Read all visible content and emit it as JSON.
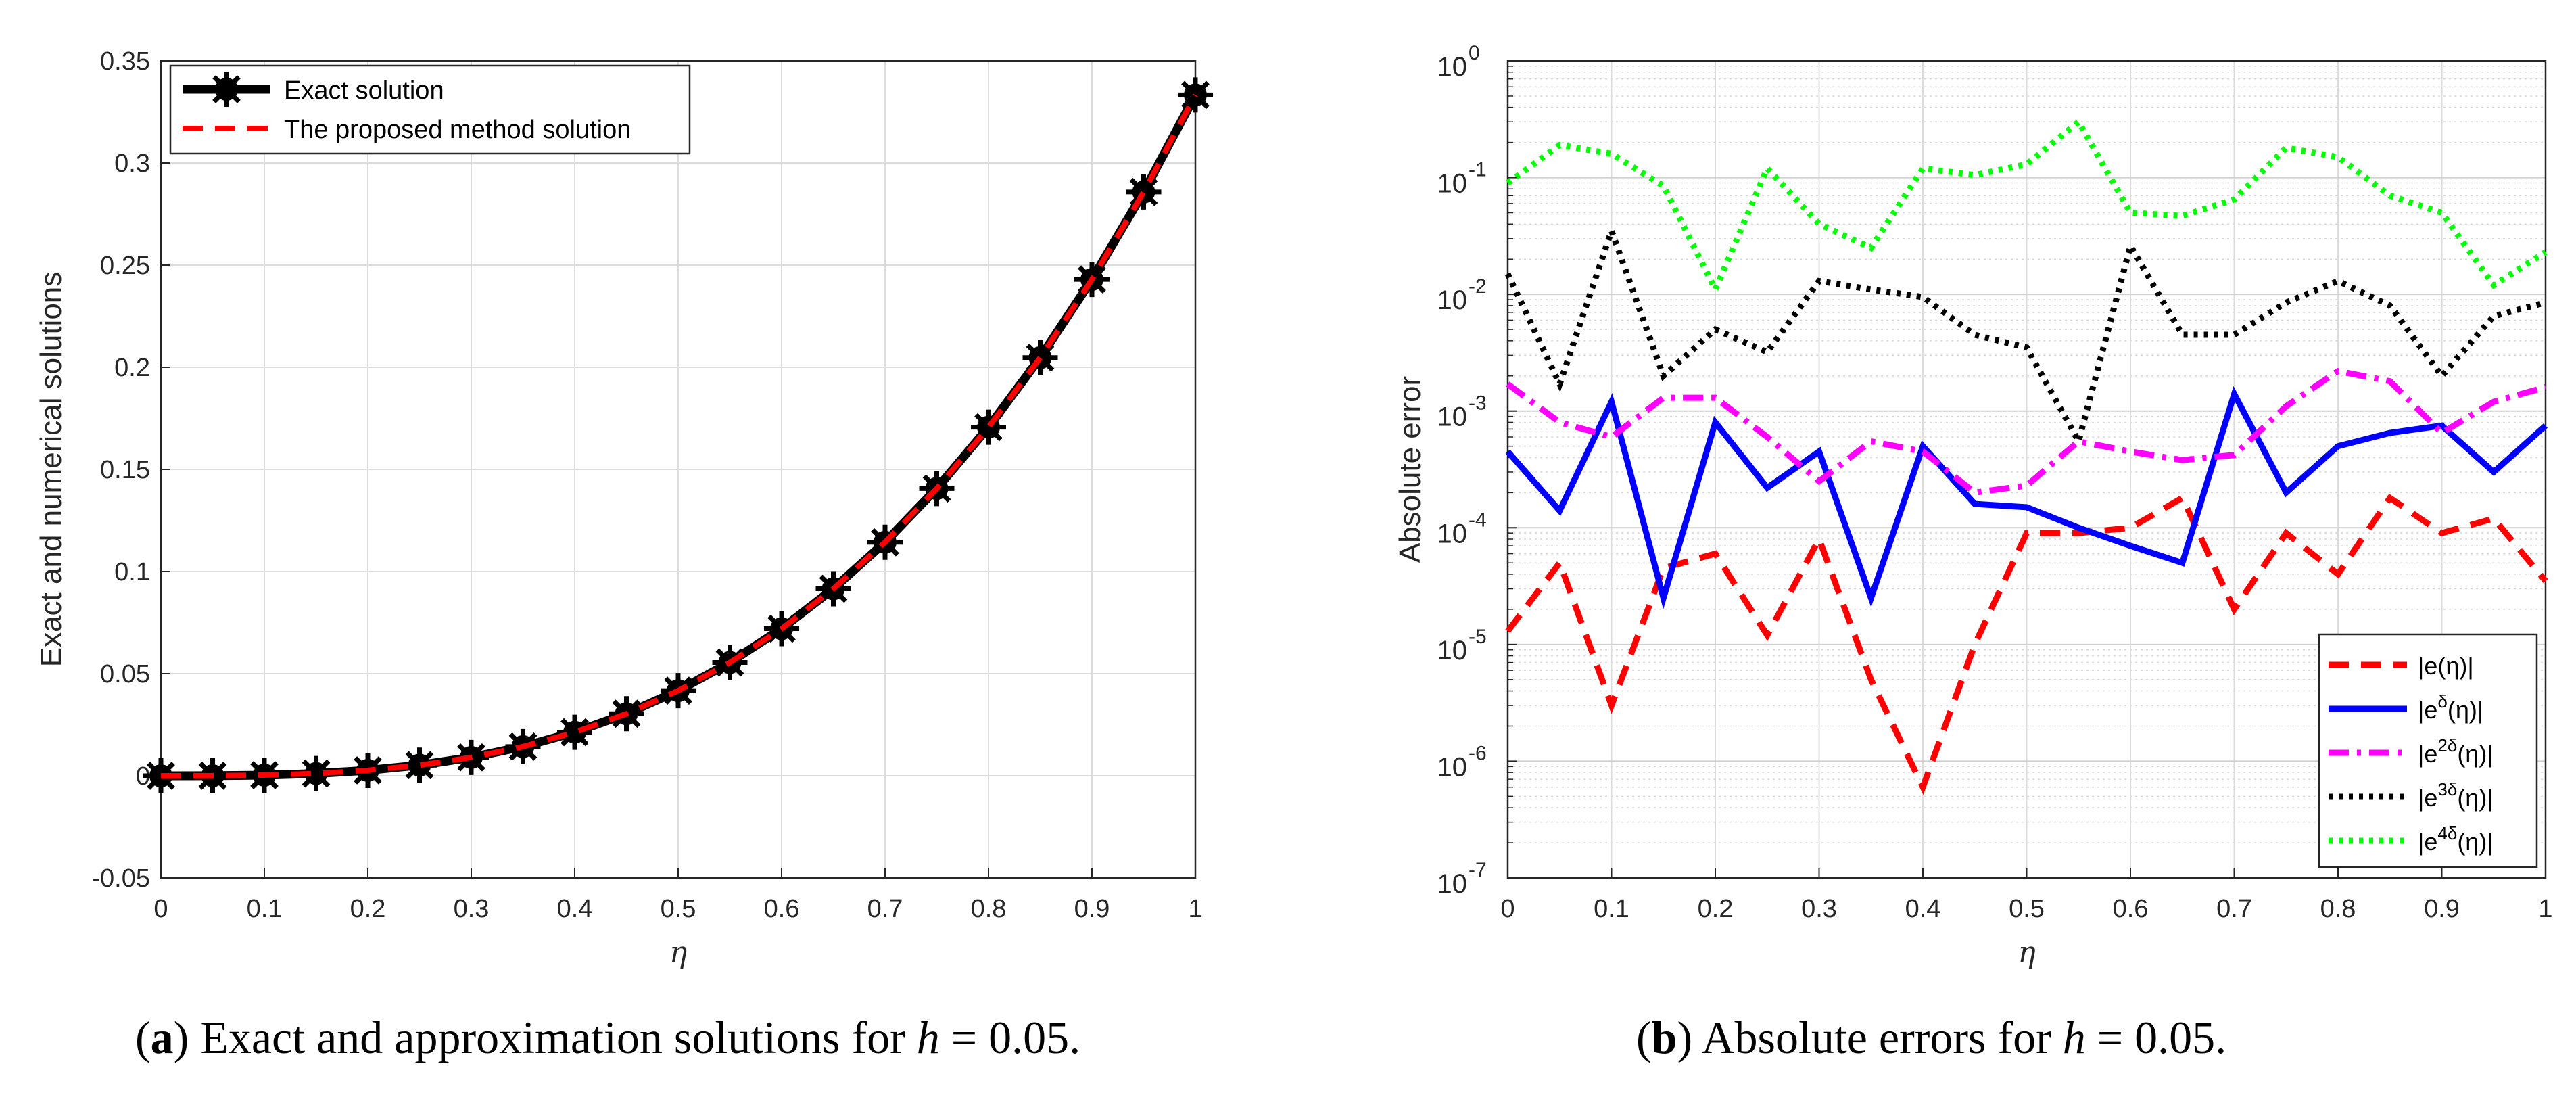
{
  "chart_data": [
    {
      "type": "line",
      "panel": "a",
      "title": "",
      "xlabel": "η",
      "ylabel": "Exact and numerical solutions",
      "xlim": [
        0,
        1
      ],
      "ylim": [
        -0.05,
        0.35
      ],
      "grid": true,
      "legend_position": "top-left",
      "xticks": [
        "0",
        "0.1",
        "0.2",
        "0.3",
        "0.4",
        "0.5",
        "0.6",
        "0.7",
        "0.8",
        "0.9",
        "1"
      ],
      "yticks": [
        "-0.05",
        "0",
        "0.05",
        "0.1",
        "0.15",
        "0.2",
        "0.25",
        "0.3",
        "0.35"
      ],
      "x": [
        0,
        0.05,
        0.1,
        0.15,
        0.2,
        0.25,
        0.3,
        0.35,
        0.4,
        0.45,
        0.5,
        0.55,
        0.6,
        0.65,
        0.7,
        0.75,
        0.8,
        0.85,
        0.9,
        0.95,
        1
      ],
      "series": [
        {
          "name": "Exact solution",
          "color": "#000000",
          "style": "solid-asterisk",
          "values": [
            0,
            4.17e-05,
            0.000333,
            0.001125,
            0.002667,
            0.005208,
            0.009,
            0.014292,
            0.021333,
            0.030375,
            0.041667,
            0.055458,
            0.072,
            0.091542,
            0.114333,
            0.140625,
            0.170667,
            0.204708,
            0.243,
            0.285792,
            0.333333
          ]
        },
        {
          "name": "The proposed method solution",
          "color": "#ff0000",
          "style": "dashed",
          "values": [
            0,
            4.17e-05,
            0.000333,
            0.001125,
            0.002667,
            0.005208,
            0.009,
            0.014292,
            0.021333,
            0.030375,
            0.041667,
            0.055458,
            0.072,
            0.091542,
            0.114333,
            0.140625,
            0.170667,
            0.204708,
            0.243,
            0.285792,
            0.333333
          ]
        }
      ]
    },
    {
      "type": "line",
      "panel": "b",
      "title": "",
      "xlabel": "η",
      "ylabel": "Absolute error",
      "xscale": "linear",
      "yscale": "log",
      "xlim": [
        0,
        1
      ],
      "ylim": [
        1e-07,
        1
      ],
      "grid": true,
      "minor_grid": true,
      "legend_position": "bottom-right",
      "xticks": [
        "0",
        "0.1",
        "0.2",
        "0.3",
        "0.4",
        "0.5",
        "0.6",
        "0.7",
        "0.8",
        "0.9",
        "1"
      ],
      "ytick_exponents": [
        -7,
        -6,
        -5,
        -4,
        -3,
        -2,
        -1,
        0
      ],
      "ytick_base": "10",
      "x": [
        0,
        0.05,
        0.1,
        0.15,
        0.2,
        0.25,
        0.3,
        0.35,
        0.4,
        0.45,
        0.5,
        0.55,
        0.6,
        0.65,
        0.7,
        0.75,
        0.8,
        0.85,
        0.9,
        0.95,
        1
      ],
      "series": [
        {
          "name": "|e(η)|",
          "label_base": "|e",
          "label_sup": "",
          "label_tail": "(η)|",
          "color": "#ff0000",
          "style": "dashed",
          "values": [
            1.3e-05,
            5e-05,
            3e-06,
            4.5e-05,
            6e-05,
            1.2e-05,
            8e-05,
            5e-06,
            6e-07,
            1e-05,
            9e-05,
            9e-05,
            0.0001,
            0.00018,
            2e-05,
            9e-05,
            4e-05,
            0.00018,
            9e-05,
            0.00012,
            3.5e-05
          ]
        },
        {
          "name": "|e^δ(η)|",
          "label_base": "|e",
          "label_sup": "δ",
          "label_tail": "(η)|",
          "color": "#0000ff",
          "style": "solid",
          "values": [
            0.00045,
            0.00014,
            0.0012,
            2.5e-05,
            0.0008,
            0.00022,
            0.00045,
            2.5e-05,
            0.0005,
            0.00016,
            0.00015,
            0.0001,
            7e-05,
            5e-05,
            0.0014,
            0.0002,
            0.0005,
            0.00065,
            0.00075,
            0.0003,
            0.00075
          ]
        },
        {
          "name": "|e^{2δ}(η)|",
          "label_base": "|e",
          "label_sup": "2δ",
          "label_tail": "(η)|",
          "color": "#ff00ff",
          "style": "dashdot",
          "values": [
            0.0017,
            0.0008,
            0.0006,
            0.0013,
            0.0013,
            0.0006,
            0.00025,
            0.00055,
            0.00045,
            0.0002,
            0.00023,
            0.00055,
            0.00045,
            0.00038,
            0.00042,
            0.0011,
            0.0022,
            0.0018,
            0.00065,
            0.0012,
            0.0016
          ]
        },
        {
          "name": "|e^{3δ}(η)|",
          "label_base": "|e",
          "label_sup": "3δ",
          "label_tail": "(η)|",
          "color": "#000000",
          "style": "dotted",
          "values": [
            0.015,
            0.0017,
            0.035,
            0.002,
            0.005,
            0.0032,
            0.013,
            0.011,
            0.0095,
            0.0045,
            0.0035,
            0.00055,
            0.026,
            0.0045,
            0.0045,
            0.0085,
            0.013,
            0.008,
            0.002,
            0.0065,
            0.0085
          ]
        },
        {
          "name": "|e^{4δ}(η)|",
          "label_base": "|e",
          "label_sup": "4δ",
          "label_tail": "(η)|",
          "color": "#00ff00",
          "style": "dotted",
          "values": [
            0.09,
            0.19,
            0.16,
            0.085,
            0.011,
            0.12,
            0.04,
            0.025,
            0.12,
            0.105,
            0.13,
            0.3,
            0.05,
            0.047,
            0.065,
            0.18,
            0.15,
            0.07,
            0.05,
            0.012,
            0.023
          ]
        }
      ]
    }
  ],
  "captions": {
    "a": {
      "tag": "a",
      "text_before": " Exact and approximation solutions for ",
      "var": "h",
      "text_after": " = 0.05."
    },
    "b": {
      "tag": "b",
      "text_before": " Absolute errors for ",
      "var": "h",
      "text_after": " = 0.05."
    }
  }
}
